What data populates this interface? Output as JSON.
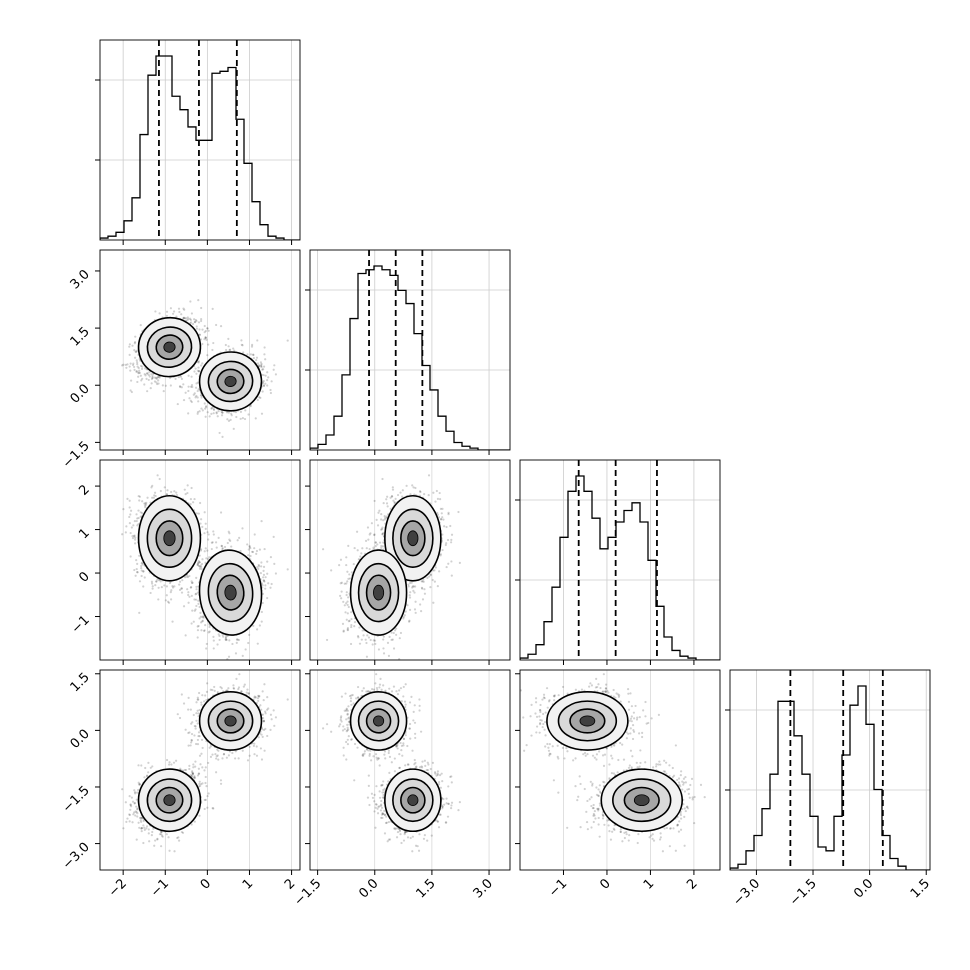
{
  "chart_data": {
    "type": "corner",
    "description_free": true,
    "n_params": 4,
    "quantile_lines": [
      [
        -1.15,
        -0.2,
        0.7
      ],
      [
        -0.15,
        0.55,
        1.25
      ],
      [
        -0.65,
        0.2,
        1.15
      ],
      [
        -2.1,
        -0.7,
        0.35
      ]
    ],
    "ranges": [
      [
        -2.55,
        2.2
      ],
      [
        -1.7,
        3.55
      ],
      [
        -2.0,
        2.6
      ],
      [
        -3.7,
        1.6
      ]
    ],
    "ticks": [
      {
        "values": [
          -2,
          -1,
          0,
          1,
          2
        ],
        "labels": [
          "−2",
          "−1",
          "0",
          "1",
          "2"
        ]
      },
      {
        "values": [
          -1.5,
          0.0,
          1.5,
          3.0
        ],
        "labels": [
          "−1.5",
          "0.0",
          "1.5",
          "3.0"
        ]
      },
      {
        "values": [
          -1,
          0,
          1,
          2
        ],
        "labels": [
          "−1",
          "0",
          "1",
          "2"
        ]
      },
      {
        "values": [
          -3.0,
          -1.5,
          0.0,
          1.5
        ],
        "labels": [
          "−3.0",
          "−1.5",
          "0.0",
          "1.5"
        ]
      }
    ],
    "row_tick_sets": [
      null,
      {
        "values": [
          -1.5,
          0.0,
          1.5,
          3.0
        ],
        "labels": [
          "−1.5",
          "0.0",
          "1.5",
          "3.0"
        ]
      },
      {
        "values": [
          -1,
          0,
          1,
          2
        ],
        "labels": [
          "−1",
          "0",
          "1",
          "2"
        ]
      },
      {
        "values": [
          -3.0,
          -1.5,
          0.0,
          1.5
        ],
        "labels": [
          "−3.0",
          "−1.5",
          "0.0",
          "1.5"
        ]
      }
    ],
    "histograms": [
      {
        "edges_start": -2.55,
        "bin_width": 0.19,
        "counts": [
          1,
          2,
          4,
          10,
          22,
          55,
          86,
          96,
          96,
          75,
          68,
          59,
          52,
          52,
          87,
          88,
          90,
          63,
          40,
          20,
          8,
          2,
          1,
          0,
          0
        ]
      },
      {
        "edges_start": -1.7,
        "bin_width": 0.21,
        "counts": [
          1,
          3,
          8,
          18,
          40,
          70,
          94,
          96,
          98,
          96,
          93,
          85,
          78,
          62,
          45,
          32,
          18,
          10,
          4,
          2,
          1,
          0,
          0,
          0,
          0
        ]
      },
      {
        "edges_start": -2.0,
        "bin_width": 0.184,
        "counts": [
          1,
          3,
          8,
          20,
          38,
          64,
          88,
          96,
          88,
          74,
          58,
          64,
          72,
          78,
          82,
          72,
          52,
          28,
          12,
          5,
          2,
          1,
          0,
          0,
          0
        ]
      },
      {
        "edges_start": -3.7,
        "bin_width": 0.212,
        "counts": [
          1,
          3,
          10,
          18,
          32,
          50,
          88,
          88,
          70,
          50,
          28,
          12,
          10,
          28,
          60,
          86,
          96,
          76,
          42,
          18,
          6,
          2,
          0,
          0,
          0
        ]
      }
    ],
    "mixture_components": [
      {
        "weight": 0.5,
        "mean": [
          -0.9,
          1.0,
          0.8,
          -1.85
        ],
        "sd": [
          0.3,
          0.3,
          0.38,
          0.32
        ],
        "corr": [
          [
            1,
            0.35,
            0.0,
            0.2
          ],
          [
            0.35,
            1,
            0.0,
            0.0
          ],
          [
            0.0,
            0.0,
            1,
            0.0
          ],
          [
            0.2,
            0.0,
            0.0,
            1
          ]
        ]
      },
      {
        "weight": 0.5,
        "mean": [
          0.55,
          0.1,
          -0.45,
          0.25
        ],
        "sd": [
          0.3,
          0.3,
          0.38,
          0.3
        ],
        "corr": [
          [
            1,
            0.2,
            0.15,
            0.0
          ],
          [
            0.2,
            1,
            0.0,
            0.0
          ],
          [
            0.15,
            0.0,
            1,
            0.0
          ],
          [
            0.0,
            0.0,
            0.0,
            1
          ]
        ]
      }
    ]
  }
}
